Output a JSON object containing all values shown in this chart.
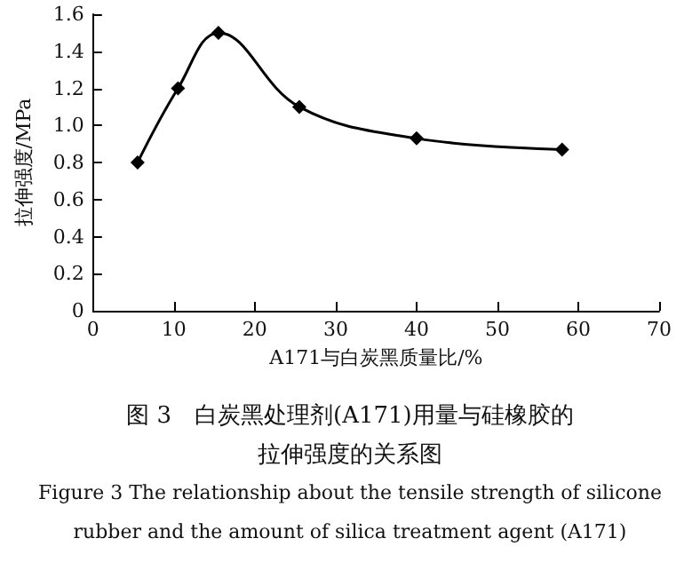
{
  "chart_data": {
    "type": "line",
    "xlabel": "A171与白炭黑质量比/%",
    "ylabel": "拉伸强度/MPa",
    "x": [
      5.5,
      10.5,
      15.5,
      25.5,
      40,
      58
    ],
    "series": [
      {
        "color": "#000000",
        "values": [
          0.8,
          1.2,
          1.5,
          1.1,
          0.93,
          0.87
        ]
      }
    ],
    "xlim": [
      0,
      70
    ],
    "xticks": [
      0,
      10,
      20,
      30,
      40,
      50,
      60,
      70
    ],
    "ylim": [
      0,
      1.6
    ],
    "yticks": [
      0,
      0.2,
      0.4,
      0.6,
      0.8,
      {
        "value": 1,
        "label": "1.0"
      },
      1.2,
      1.4,
      1.6
    ],
    "marker": "diamond",
    "line_style": "solid",
    "grid": false,
    "annotations": [
      "图 3　白炭黑处理剂(A171)用量与硅橡胶的",
      "拉伸强度的关系图",
      "Figure 3 The relationship about the tensile strength of silicone",
      "rubber and the amount of silica treatment agent (A171)"
    ]
  }
}
